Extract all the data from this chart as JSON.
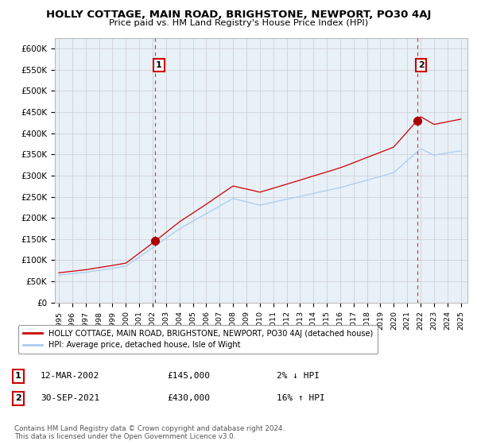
{
  "title": "HOLLY COTTAGE, MAIN ROAD, BRIGHSTONE, NEWPORT, PO30 4AJ",
  "subtitle": "Price paid vs. HM Land Registry's House Price Index (HPI)",
  "ylabel_ticks": [
    "£0",
    "£50K",
    "£100K",
    "£150K",
    "£200K",
    "£250K",
    "£300K",
    "£350K",
    "£400K",
    "£450K",
    "£500K",
    "£550K",
    "£600K"
  ],
  "ytick_values": [
    0,
    50000,
    100000,
    150000,
    200000,
    250000,
    300000,
    350000,
    400000,
    450000,
    500000,
    550000,
    600000
  ],
  "ylim": [
    0,
    625000
  ],
  "xlim_start": 1994.7,
  "xlim_end": 2025.5,
  "sales": [
    {
      "date_num": 2002.19,
      "price": 145000,
      "label": "1"
    },
    {
      "date_num": 2021.75,
      "price": 430000,
      "label": "2"
    }
  ],
  "vline_color": "#dd0000",
  "vline_style": "--",
  "sale_marker_color": "#aa0000",
  "hpi_line_color": "#aaccee",
  "price_line_color": "#cc0000",
  "chart_bg_color": "#e8f0f8",
  "legend_label_price": "HOLLY COTTAGE, MAIN ROAD, BRIGHSTONE, NEWPORT, PO30 4AJ (detached house)",
  "legend_label_hpi": "HPI: Average price, detached house, Isle of Wight",
  "annotation1_date": "12-MAR-2002",
  "annotation1_price": "£145,000",
  "annotation1_hpi": "2% ↓ HPI",
  "annotation2_date": "30-SEP-2021",
  "annotation2_price": "£430,000",
  "annotation2_hpi": "16% ↑ HPI",
  "footer": "Contains HM Land Registry data © Crown copyright and database right 2024.\nThis data is licensed under the Open Government Licence v3.0.",
  "bg_color": "#ffffff",
  "grid_color": "#cccccc",
  "label_box_color": "#cc0000"
}
